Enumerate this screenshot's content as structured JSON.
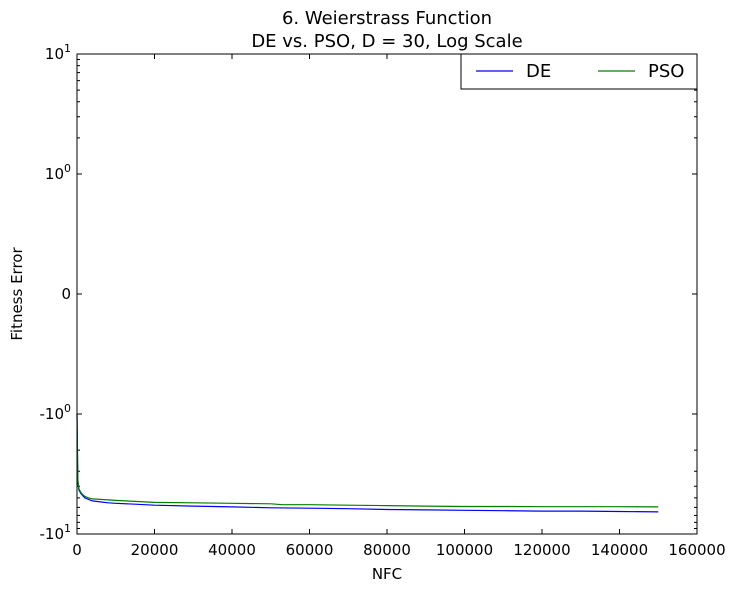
{
  "chart_data": {
    "type": "line",
    "title": "6.   Weierstrass Function",
    "subtitle": "DE vs. PSO, D = 30, Log Scale",
    "xlabel": "NFC",
    "ylabel": "Fitness Error",
    "xlim": [
      0,
      160000
    ],
    "yscale": "symlog",
    "x_ticks": [
      0,
      20000,
      40000,
      60000,
      80000,
      100000,
      120000,
      140000,
      160000
    ],
    "x_tick_labels": [
      "0",
      "20000",
      "40000",
      "60000",
      "80000",
      "100000",
      "120000",
      "140000",
      "160000"
    ],
    "y_ticks": [
      {
        "base": "10",
        "exp": "1",
        "prefix": ""
      },
      {
        "base": "10",
        "exp": "0",
        "prefix": ""
      },
      {
        "base": "0",
        "exp": "",
        "prefix": ""
      },
      {
        "base": "10",
        "exp": "0",
        "prefix": "-"
      },
      {
        "base": "10",
        "exp": "1",
        "prefix": "-"
      }
    ],
    "legend_location": "top-right",
    "grid": false,
    "series": [
      {
        "name": "DE",
        "color": "#0000ff",
        "x": [
          0,
          200,
          500,
          1000,
          1500,
          2000,
          3000,
          4000,
          6000,
          8000,
          10000,
          15000,
          20000,
          30000,
          40000,
          50000,
          60000,
          70000,
          80000,
          90000,
          100000,
          110000,
          120000,
          130000,
          140000,
          150000
        ],
        "y": [
          -1.0,
          -3.6,
          -4.3,
          -4.6,
          -4.8,
          -5.0,
          -5.15,
          -5.3,
          -5.4,
          -5.5,
          -5.55,
          -5.65,
          -5.75,
          -5.85,
          -5.95,
          -6.05,
          -6.1,
          -6.15,
          -6.25,
          -6.3,
          -6.35,
          -6.4,
          -6.45,
          -6.45,
          -6.5,
          -6.55
        ]
      },
      {
        "name": "PSO",
        "color": "#008000",
        "x": [
          0,
          200,
          500,
          1000,
          1500,
          2000,
          3000,
          4000,
          6000,
          8000,
          10000,
          15000,
          20000,
          30000,
          40000,
          50000,
          53000,
          60000,
          70000,
          80000,
          90000,
          100000,
          110000,
          120000,
          130000,
          140000,
          150000
        ],
        "y": [
          -1.0,
          -3.5,
          -4.2,
          -4.5,
          -4.7,
          -4.85,
          -5.0,
          -5.1,
          -5.15,
          -5.2,
          -5.25,
          -5.35,
          -5.45,
          -5.5,
          -5.55,
          -5.6,
          -5.7,
          -5.7,
          -5.75,
          -5.8,
          -5.85,
          -5.9,
          -5.9,
          -5.92,
          -5.92,
          -5.92,
          -5.95
        ]
      }
    ]
  }
}
